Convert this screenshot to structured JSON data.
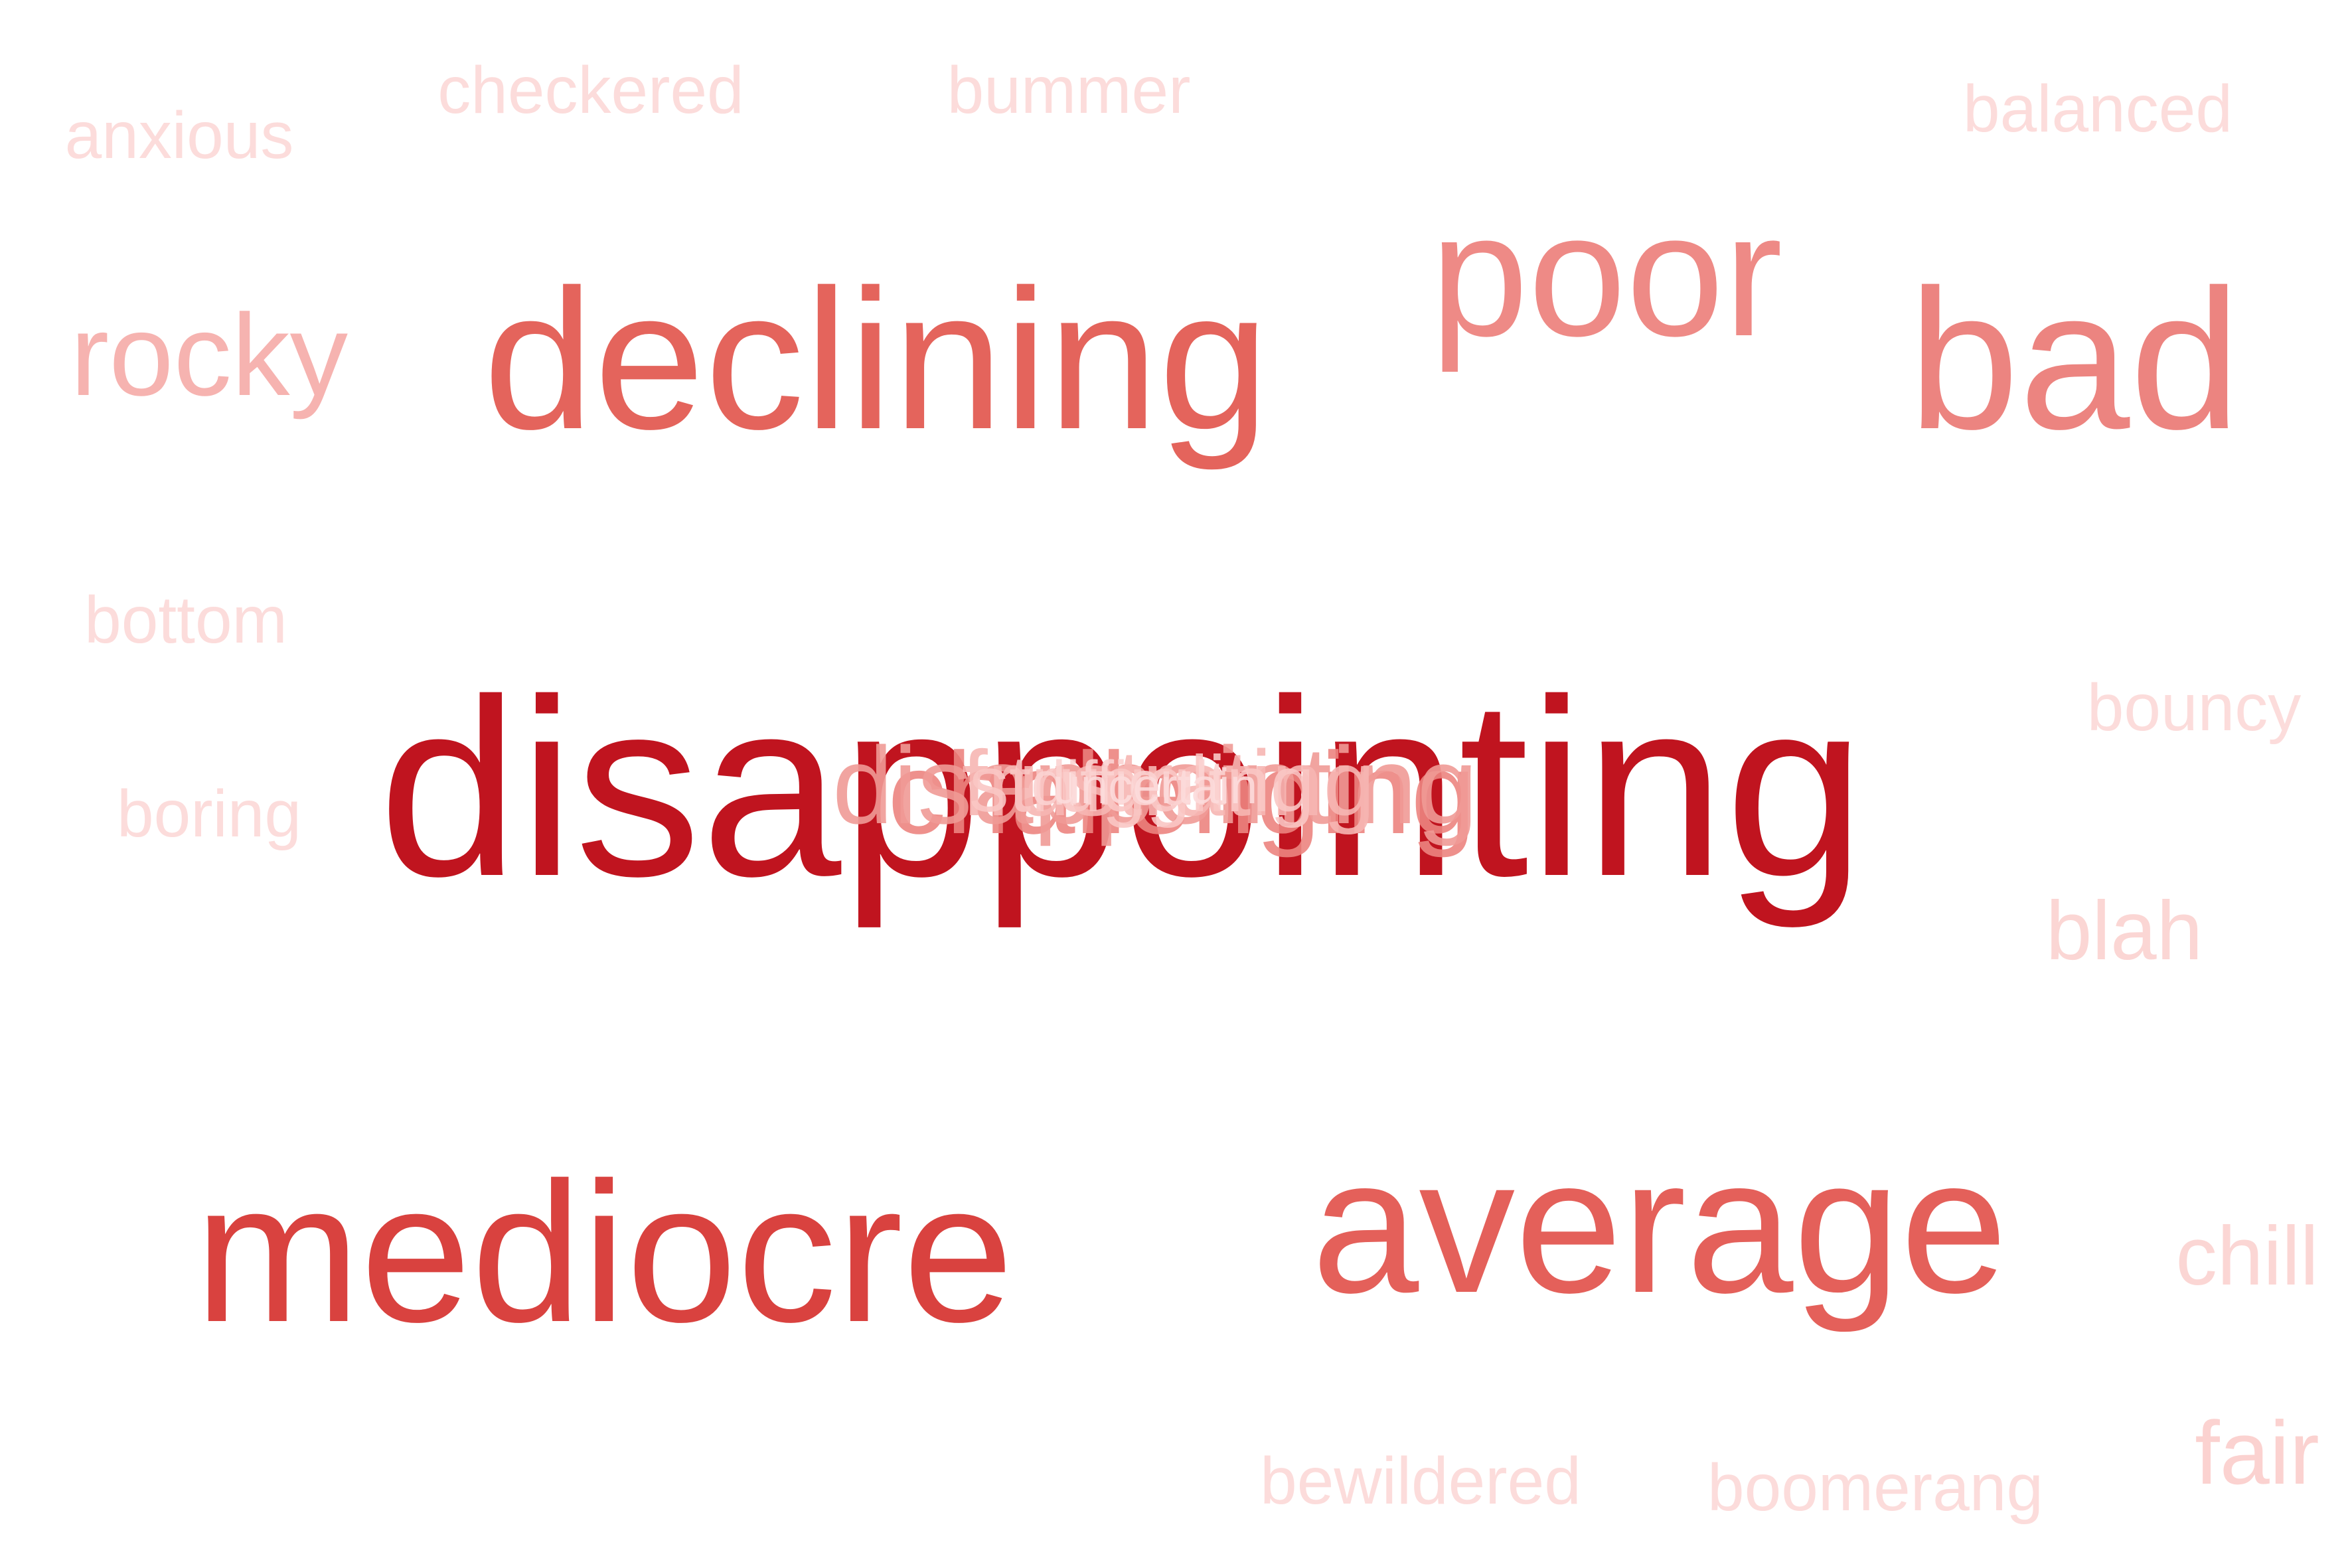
{
  "chart_data": {
    "type": "wordcloud",
    "title": "",
    "color_scale": {
      "low": "#fcdcdc",
      "high": "#c0141f"
    },
    "words": [
      {
        "text": "disappointing",
        "weight": 1.0,
        "color": "#c0141f"
      },
      {
        "text": "mediocre",
        "weight": 0.82,
        "color": "#d9423f"
      },
      {
        "text": "average",
        "weight": 0.78,
        "color": "#e4605a"
      },
      {
        "text": "declining",
        "weight": 0.77,
        "color": "#e4645c"
      },
      {
        "text": "bad",
        "weight": 0.75,
        "color": "#ec8480"
      },
      {
        "text": "poor",
        "weight": 0.73,
        "color": "#ee8a86"
      },
      {
        "text": "rocky",
        "weight": 0.45,
        "color": "#f6b3b0"
      },
      {
        "text": "fair",
        "weight": 0.3,
        "color": "#fbd2d0"
      },
      {
        "text": "chill",
        "weight": 0.3,
        "color": "#fbd6d4"
      },
      {
        "text": "blah",
        "weight": 0.3,
        "color": "#fbd6d4"
      },
      {
        "text": "anxious",
        "weight": 0.25,
        "color": "#fcdcdb"
      },
      {
        "text": "checkered",
        "weight": 0.25,
        "color": "#fcdcdb"
      },
      {
        "text": "bummer",
        "weight": 0.25,
        "color": "#fcdcdb"
      },
      {
        "text": "balanced",
        "weight": 0.25,
        "color": "#fcdcdb"
      },
      {
        "text": "bottom",
        "weight": 0.25,
        "color": "#fcdcdb"
      },
      {
        "text": "bouncy",
        "weight": 0.25,
        "color": "#fcdcdb"
      },
      {
        "text": "boring",
        "weight": 0.25,
        "color": "#fcdcdb"
      },
      {
        "text": "bewildered",
        "weight": 0.25,
        "color": "#fcdcdb"
      },
      {
        "text": "boomerang",
        "weight": 0.25,
        "color": "#fcdcdb"
      }
    ],
    "overlapped_words": [
      {
        "text": "challenging",
        "color": "#ec8480"
      },
      {
        "text": "disappointing",
        "color": "#f09a96"
      },
      {
        "text": "frustrating",
        "color": "#f6b6b3"
      },
      {
        "text": "struggling",
        "color": "#f9c6c4"
      },
      {
        "text": "difficult",
        "color": "#fbd3d1"
      },
      {
        "text": "uncertain",
        "color": "#fcdcdb"
      }
    ]
  }
}
